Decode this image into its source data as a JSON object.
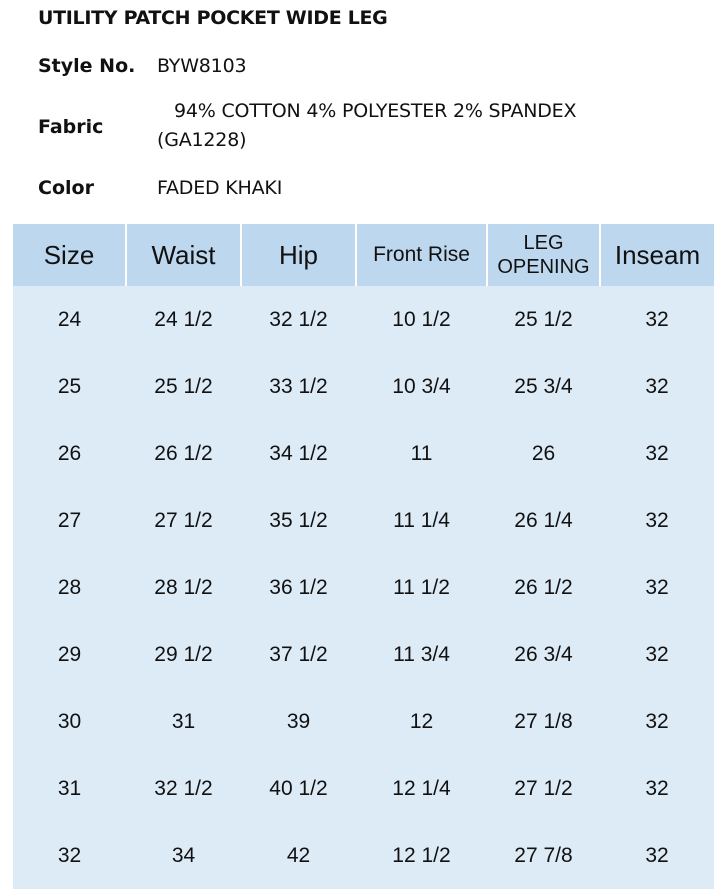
{
  "title": "UTILITY PATCH POCKET WIDE LEG",
  "style": {
    "label": "Style No.",
    "value": "BYW8103"
  },
  "fabric": {
    "label": "Fabric",
    "value": "94% COTTON 4% POLYESTER 2% SPANDEX (GA1228)"
  },
  "color": {
    "label": "Color",
    "value": "FADED KHAKI"
  },
  "table": {
    "headers": [
      "Size",
      "Waist",
      "Hip",
      "Front Rise",
      "LEG OPENING",
      "Inseam"
    ],
    "rows": [
      [
        "24",
        "24 1/2",
        "32 1/2",
        "10 1/2",
        "25 1/2",
        "32"
      ],
      [
        "25",
        "25 1/2",
        "33 1/2",
        "10 3/4",
        "25 3/4",
        "32"
      ],
      [
        "26",
        "26 1/2",
        "34 1/2",
        "11",
        "26",
        "32"
      ],
      [
        "27",
        "27 1/2",
        "35 1/2",
        "11 1/4",
        "26 1/4",
        "32"
      ],
      [
        "28",
        "28 1/2",
        "36 1/2",
        "11 1/2",
        "26 1/2",
        "32"
      ],
      [
        "29",
        "29 1/2",
        "37 1/2",
        "11 3/4",
        "26 3/4",
        "32"
      ],
      [
        "30",
        "31",
        "39",
        "12",
        "27 1/8",
        "32"
      ],
      [
        "31",
        "32 1/2",
        "40 1/2",
        "12 1/4",
        "27 1/2",
        "32"
      ],
      [
        "32",
        "34",
        "42",
        "12 1/2",
        "27 7/8",
        "32"
      ]
    ]
  },
  "colors": {
    "header_bg": "#bdd7ee",
    "body_bg": "#ddebf7"
  }
}
